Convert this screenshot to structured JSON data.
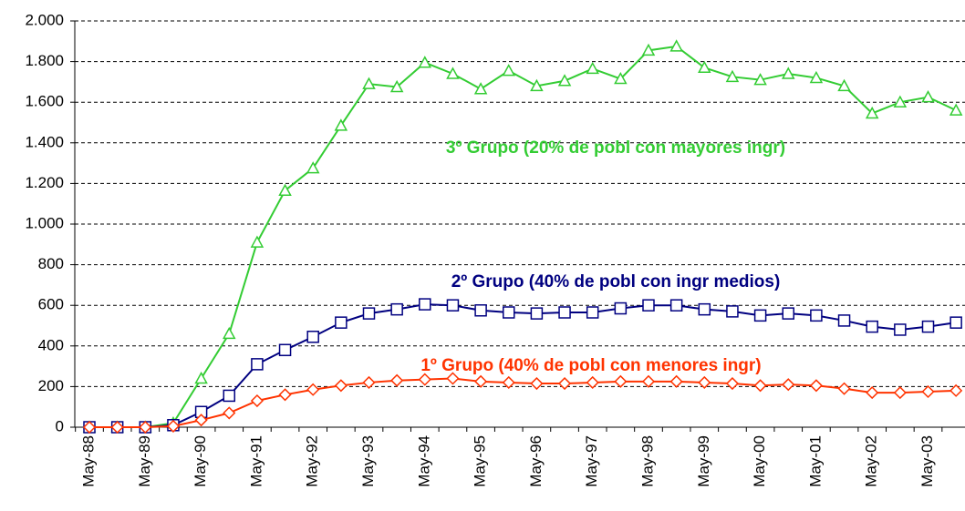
{
  "chart_data": {
    "type": "line",
    "categories": [
      "May-88",
      null,
      "May-89",
      null,
      "May-90",
      null,
      "May-91",
      null,
      "May-92",
      null,
      "May-93",
      null,
      "May-94",
      null,
      "May-95",
      null,
      "May-96",
      null,
      "May-97",
      null,
      "May-98",
      null,
      "May-99",
      null,
      "May-00",
      null,
      "May-01",
      null,
      "May-02",
      null,
      "May-03",
      null
    ],
    "series": [
      {
        "name": "3º Grupo (20% de pobl con mayores ingr)",
        "color": "#33cc33",
        "marker": "triangle",
        "values": [
          0,
          0,
          0,
          20,
          240,
          460,
          910,
          1165,
          1275,
          1485,
          1690,
          1675,
          1795,
          1740,
          1665,
          1755,
          1680,
          1705,
          1765,
          1715,
          1855,
          1875,
          1770,
          1725,
          1710,
          1740,
          1720,
          1680,
          1545,
          1600,
          1625,
          1560
        ]
      },
      {
        "name": "2º Grupo (40% de pobl con ingr medios)",
        "color": "#000080",
        "marker": "square",
        "values": [
          0,
          0,
          0,
          10,
          75,
          155,
          310,
          380,
          445,
          515,
          560,
          580,
          605,
          600,
          575,
          565,
          560,
          565,
          565,
          585,
          600,
          600,
          580,
          570,
          550,
          560,
          550,
          525,
          495,
          480,
          495,
          515
        ]
      },
      {
        "name": "1º Grupo (40% de pobl con menores ingr)",
        "color": "#ff3300",
        "marker": "diamond",
        "values": [
          0,
          0,
          0,
          5,
          35,
          70,
          130,
          160,
          185,
          205,
          220,
          230,
          235,
          240,
          225,
          220,
          215,
          215,
          220,
          225,
          225,
          225,
          220,
          215,
          205,
          210,
          205,
          190,
          170,
          170,
          175,
          180
        ]
      }
    ],
    "ylim": [
      0,
      2000
    ],
    "yticks": [
      0,
      200,
      400,
      600,
      800,
      {
        "value": 1000,
        "label": "1.000"
      },
      {
        "value": 1200,
        "label": "1.200"
      },
      {
        "value": 1400,
        "label": "1.400"
      },
      {
        "value": 1600,
        "label": "1.600"
      },
      {
        "value": 1800,
        "label": "1.800"
      },
      {
        "value": 2000,
        "label": "2.000"
      }
    ],
    "grid": true
  }
}
